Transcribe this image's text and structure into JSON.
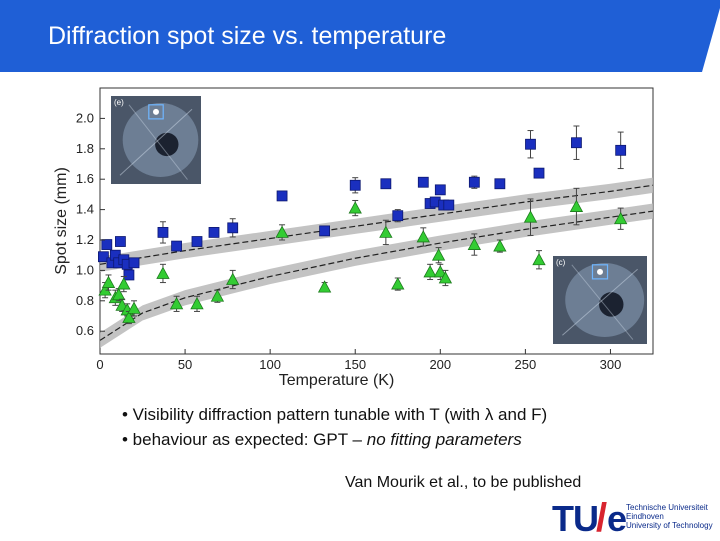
{
  "slide": {
    "title": "Diffraction spot size vs. temperature",
    "bullets": [
      "• Visibility diffraction pattern tunable with T (with λ and F)",
      "• behaviour as expected: GPT – ",
      "no fitting parameters"
    ],
    "citation": "Van Mourik et al., to be published",
    "logo": {
      "tu": "TU",
      "slash": "/",
      "e": "e",
      "line1": "Technische Universiteit",
      "line2": "Eindhoven",
      "line3": "University of Technology"
    },
    "header_color": "#1f5fd6"
  },
  "chart_data": {
    "type": "scatter",
    "xlabel": "Temperature (K)",
    "ylabel": "Spot size (mm)",
    "xlim": [
      0,
      325
    ],
    "ylim": [
      0.45,
      2.2
    ],
    "xticks": [
      0,
      50,
      100,
      150,
      200,
      250,
      300
    ],
    "yticks": [
      0.6,
      0.8,
      1.0,
      1.2,
      1.4,
      1.6,
      1.8,
      2.0
    ],
    "inset_labels": [
      "(c)",
      "(e)"
    ],
    "series": [
      {
        "marker": "square",
        "color": "#1a2fbf",
        "points": [
          [
            2,
            1.09
          ],
          [
            4,
            1.17
          ],
          [
            7,
            1.05
          ],
          [
            9,
            1.1
          ],
          [
            11,
            1.05
          ],
          [
            12,
            1.19
          ],
          [
            14,
            1.07
          ],
          [
            16,
            1.04
          ],
          [
            17,
            0.97
          ],
          [
            20,
            1.05
          ],
          [
            37,
            1.25
          ],
          [
            45,
            1.16
          ],
          [
            57,
            1.19
          ],
          [
            67,
            1.25
          ],
          [
            78,
            1.28
          ],
          [
            107,
            1.49
          ],
          [
            132,
            1.26
          ],
          [
            150,
            1.56
          ],
          [
            168,
            1.57
          ],
          [
            175,
            1.36
          ],
          [
            190,
            1.58
          ],
          [
            194,
            1.44
          ],
          [
            197,
            1.45
          ],
          [
            200,
            1.53
          ],
          [
            202,
            1.43
          ],
          [
            205,
            1.43
          ],
          [
            220,
            1.58
          ],
          [
            235,
            1.57
          ],
          [
            253,
            1.83
          ],
          [
            258,
            1.64
          ],
          [
            280,
            1.84
          ],
          [
            306,
            1.79
          ]
        ],
        "errors": [
          0.03,
          0.03,
          0.03,
          0.03,
          0.03,
          0.03,
          0.03,
          0.03,
          0.03,
          0.03,
          0.07,
          0.03,
          0.03,
          0.03,
          0.06,
          0.03,
          0.03,
          0.05,
          0.03,
          0.04,
          0.03,
          0.03,
          0.03,
          0.03,
          0.03,
          0.03,
          0.04,
          0.03,
          0.09,
          0.03,
          0.11,
          0.12
        ]
      },
      {
        "marker": "triangle",
        "color": "#33cc33",
        "points": [
          [
            3,
            0.87
          ],
          [
            5,
            0.92
          ],
          [
            9,
            0.82
          ],
          [
            11,
            0.84
          ],
          [
            13,
            0.77
          ],
          [
            14,
            0.91
          ],
          [
            16,
            0.74
          ],
          [
            17,
            0.69
          ],
          [
            20,
            0.75
          ],
          [
            37,
            0.98
          ],
          [
            45,
            0.78
          ],
          [
            57,
            0.78
          ],
          [
            69,
            0.83
          ],
          [
            78,
            0.94
          ],
          [
            107,
            1.25
          ],
          [
            132,
            0.89
          ],
          [
            150,
            1.41
          ],
          [
            168,
            1.25
          ],
          [
            175,
            0.91
          ],
          [
            190,
            1.22
          ],
          [
            194,
            0.99
          ],
          [
            199,
            1.1
          ],
          [
            200,
            0.99
          ],
          [
            203,
            0.95
          ],
          [
            220,
            1.17
          ],
          [
            235,
            1.16
          ],
          [
            253,
            1.35
          ],
          [
            258,
            1.07
          ],
          [
            280,
            1.42
          ],
          [
            306,
            1.34
          ]
        ],
        "errors": [
          0.05,
          0.05,
          0.05,
          0.04,
          0.04,
          0.05,
          0.04,
          0.04,
          0.05,
          0.06,
          0.05,
          0.05,
          0.04,
          0.06,
          0.05,
          0.03,
          0.05,
          0.08,
          0.04,
          0.06,
          0.05,
          0.05,
          0.05,
          0.05,
          0.07,
          0.04,
          0.12,
          0.06,
          0.12,
          0.07
        ]
      }
    ],
    "bands": [
      {
        "points": [
          [
            0,
            1.04
          ],
          [
            50,
            1.13
          ],
          [
            100,
            1.21
          ],
          [
            150,
            1.29
          ],
          [
            200,
            1.37
          ],
          [
            250,
            1.45
          ],
          [
            300,
            1.52
          ],
          [
            325,
            1.56
          ]
        ],
        "width": 0.05
      },
      {
        "points": [
          [
            0,
            0.54
          ],
          [
            25,
            0.72
          ],
          [
            50,
            0.82
          ],
          [
            100,
            0.96
          ],
          [
            150,
            1.08
          ],
          [
            200,
            1.18
          ],
          [
            250,
            1.27
          ],
          [
            300,
            1.35
          ],
          [
            325,
            1.39
          ]
        ],
        "width": 0.05
      }
    ]
  }
}
